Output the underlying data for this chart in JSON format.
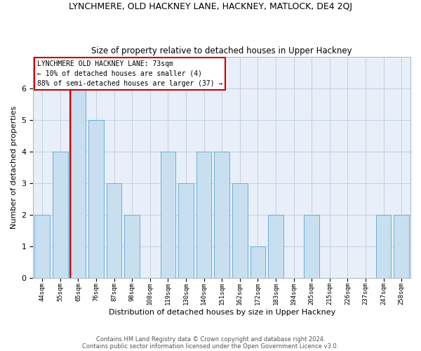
{
  "title": "LYNCHMERE, OLD HACKNEY LANE, HACKNEY, MATLOCK, DE4 2QJ",
  "subtitle": "Size of property relative to detached houses in Upper Hackney",
  "xlabel": "Distribution of detached houses by size in Upper Hackney",
  "ylabel": "Number of detached properties",
  "footer1": "Contains HM Land Registry data © Crown copyright and database right 2024.",
  "footer2": "Contains public sector information licensed under the Open Government Licence v3.0.",
  "bar_labels": [
    "44sqm",
    "55sqm",
    "65sqm",
    "76sqm",
    "87sqm",
    "98sqm",
    "108sqm",
    "119sqm",
    "130sqm",
    "140sqm",
    "151sqm",
    "162sqm",
    "172sqm",
    "183sqm",
    "194sqm",
    "205sqm",
    "215sqm",
    "226sqm",
    "237sqm",
    "247sqm",
    "258sqm"
  ],
  "bar_values": [
    2,
    4,
    6,
    5,
    3,
    2,
    0,
    4,
    3,
    4,
    4,
    3,
    1,
    2,
    0,
    2,
    0,
    0,
    0,
    2,
    2
  ],
  "bar_color": "#c8dff0",
  "bar_edge_color": "#6aaed6",
  "property_line_index": 2,
  "annotation_line1": "LYNCHMERE OLD HACKNEY LANE: 73sqm",
  "annotation_line2": "← 10% of detached houses are smaller (4)",
  "annotation_line3": "88% of semi-detached houses are larger (37) →",
  "property_line_color": "#cc0000",
  "ylim": [
    0,
    7
  ],
  "yticks": [
    0,
    1,
    2,
    3,
    4,
    5,
    6,
    7
  ],
  "grid_color": "#bbccdd",
  "bg_color": "#e8eff8"
}
